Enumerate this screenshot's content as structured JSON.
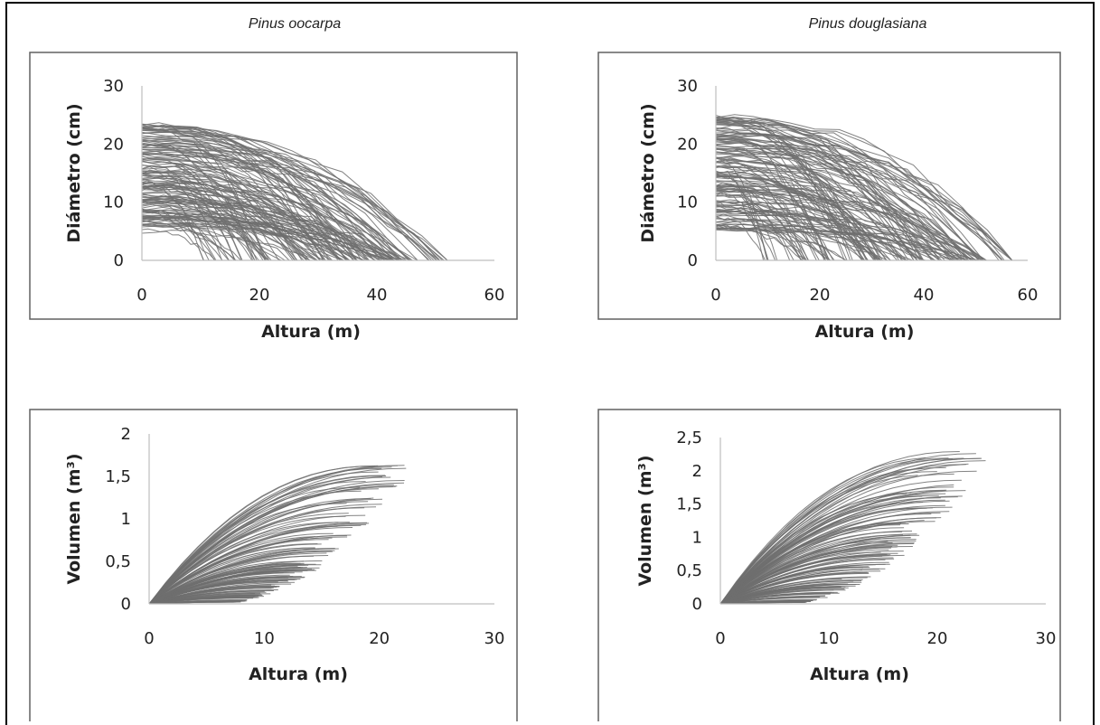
{
  "species_titles": [
    "Pinus oocarpa",
    "Pinus douglasiana"
  ],
  "colors": {
    "lines": "#6e6e6e",
    "axis": "#bfbfbf",
    "frame": "#606060"
  },
  "chart_data": [
    {
      "id": "oocarpa-diameter",
      "type": "line",
      "species": "Pinus oocarpa",
      "xlabel": "Altura (m)",
      "ylabel": "Diámetro (cm)",
      "xlim": [
        0,
        60
      ],
      "ylim": [
        0,
        30
      ],
      "xticks": [
        "0",
        "20",
        "40",
        "60"
      ],
      "yticks": [
        "0",
        "10",
        "20",
        "30"
      ],
      "grid": false,
      "series_count": 150,
      "d0_range": [
        5,
        24
      ],
      "height_range": [
        8,
        52
      ]
    },
    {
      "id": "douglasiana-diameter",
      "type": "line",
      "species": "Pinus douglasiana",
      "xlabel": "Altura (m)",
      "ylabel": "Diámetro (cm)",
      "xlim": [
        0,
        60
      ],
      "ylim": [
        0,
        30
      ],
      "xticks": [
        "0",
        "20",
        "40",
        "60"
      ],
      "yticks": [
        "0",
        "10",
        "20",
        "30"
      ],
      "grid": false,
      "series_count": 150,
      "d0_range": [
        5,
        25
      ],
      "height_range": [
        8,
        57
      ]
    },
    {
      "id": "oocarpa-volume",
      "type": "line",
      "species": "Pinus oocarpa",
      "xlabel": "Altura (m)",
      "ylabel": "Volumen (m³)",
      "xlim": [
        0,
        30
      ],
      "ylim": [
        0,
        2
      ],
      "xticks": [
        "0",
        "10",
        "20",
        "30"
      ],
      "yticks": [
        "0",
        "0,5",
        "1",
        "1,5",
        "2"
      ],
      "grid": false,
      "series_count": 150,
      "vmax_range": [
        0.02,
        1.65
      ],
      "height_range": [
        6,
        23.5
      ]
    },
    {
      "id": "douglasiana-volume",
      "type": "line",
      "species": "Pinus douglasiana",
      "xlabel": "Altura (m)",
      "ylabel": "Volumen (m³)",
      "xlim": [
        0,
        30
      ],
      "ylim": [
        0,
        2.5
      ],
      "xticks": [
        "0",
        "10",
        "20",
        "30"
      ],
      "yticks": [
        "0",
        "0,5",
        "1",
        "1,5",
        "2",
        "2,5"
      ],
      "grid": false,
      "series_count": 150,
      "vmax_range": [
        0.02,
        2.3
      ],
      "height_range": [
        6,
        25.5
      ]
    }
  ]
}
